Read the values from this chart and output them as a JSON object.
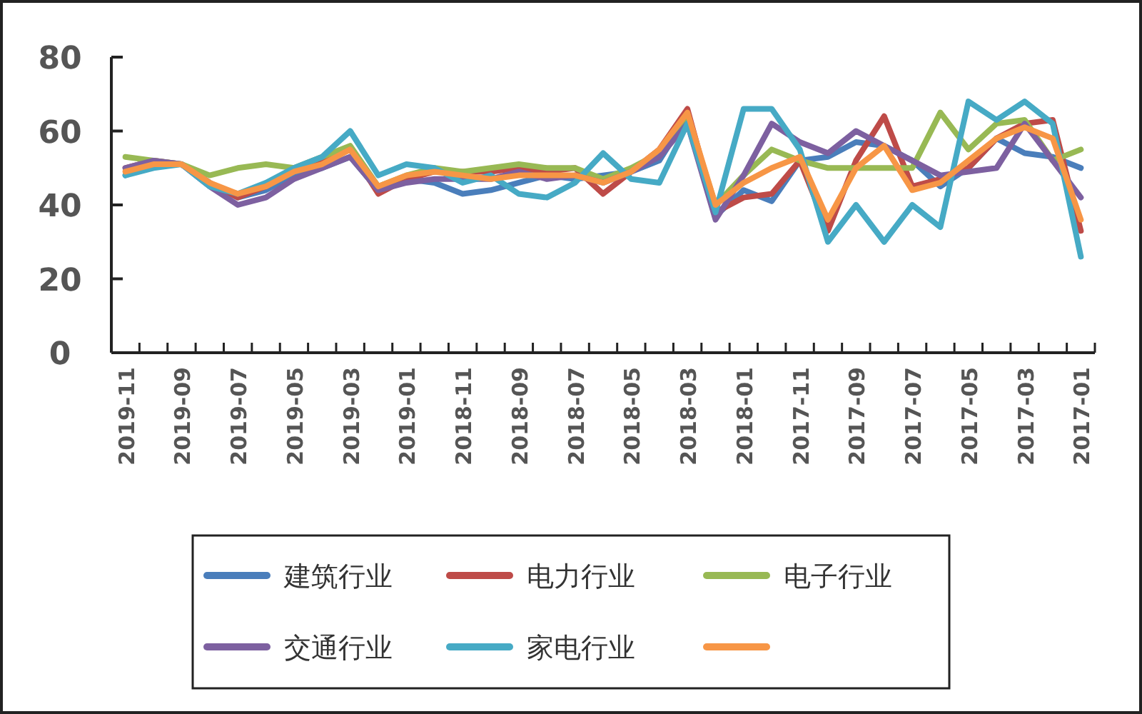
{
  "chart_data": {
    "type": "line",
    "categories": [
      "2019-11",
      null,
      "2019-09",
      null,
      "2019-07",
      null,
      "2019-05",
      null,
      "2019-03",
      null,
      "2019-01",
      null,
      "2018-11",
      null,
      "2018-09",
      null,
      "2018-07",
      null,
      "2018-05",
      null,
      "2018-03",
      null,
      "2018-01",
      null,
      "2017-11",
      null,
      "2017-09",
      null,
      "2017-07",
      null,
      "2017-05",
      null,
      "2017-03",
      null,
      "2017-01"
    ],
    "series": [
      {
        "name": "建筑行业",
        "color": "#4a7ebb",
        "values": [
          48,
          51,
          51,
          46,
          42,
          44,
          48,
          50,
          53,
          44,
          47,
          46,
          43,
          44,
          46,
          48,
          47,
          48,
          49,
          52,
          64,
          37,
          44,
          41,
          52,
          53,
          57,
          56,
          52,
          45,
          50,
          58,
          54,
          53,
          50
        ]
      },
      {
        "name": "电力行业",
        "color": "#be4b48",
        "values": [
          50,
          52,
          51,
          46,
          42,
          45,
          50,
          52,
          55,
          43,
          47,
          49,
          49,
          49,
          50,
          49,
          50,
          43,
          49,
          55,
          66,
          38,
          42,
          43,
          52,
          33,
          52,
          64,
          45,
          47,
          50,
          58,
          62,
          63,
          33
        ]
      },
      {
        "name": "电子行业",
        "color": "#98b954",
        "values": [
          53,
          52,
          51,
          48,
          50,
          51,
          50,
          53,
          56,
          45,
          48,
          50,
          49,
          50,
          51,
          50,
          50,
          47,
          50,
          54,
          64,
          40,
          48,
          55,
          52,
          50,
          50,
          50,
          50,
          65,
          55,
          62,
          63,
          52,
          55
        ]
      },
      {
        "name": "交通行业",
        "color": "#7d60a0",
        "values": [
          50,
          52,
          51,
          45,
          40,
          42,
          47,
          50,
          53,
          44,
          46,
          47,
          47,
          47,
          49,
          47,
          48,
          46,
          49,
          53,
          62,
          36,
          48,
          62,
          57,
          54,
          60,
          56,
          52,
          48,
          49,
          50,
          62,
          52,
          42
        ]
      },
      {
        "name": "家电行业",
        "color": "#46aac5",
        "values": [
          48,
          50,
          51,
          45,
          43,
          46,
          50,
          53,
          60,
          48,
          51,
          50,
          46,
          48,
          43,
          42,
          46,
          54,
          47,
          46,
          62,
          38,
          66,
          66,
          55,
          30,
          40,
          30,
          40,
          34,
          68,
          63,
          68,
          62,
          26
        ]
      },
      {
        "color": "#f79646",
        "values": [
          49,
          51,
          51,
          46,
          43,
          45,
          49,
          51,
          55,
          45,
          48,
          49,
          48,
          47,
          48,
          48,
          48,
          46,
          49,
          55,
          65,
          40,
          46,
          50,
          53,
          36,
          50,
          56,
          44,
          46,
          52,
          58,
          61,
          58,
          36
        ]
      }
    ],
    "ylim": [
      0,
      80
    ],
    "yticks": [
      0,
      20,
      40,
      60,
      80
    ],
    "legend": "bottom"
  }
}
